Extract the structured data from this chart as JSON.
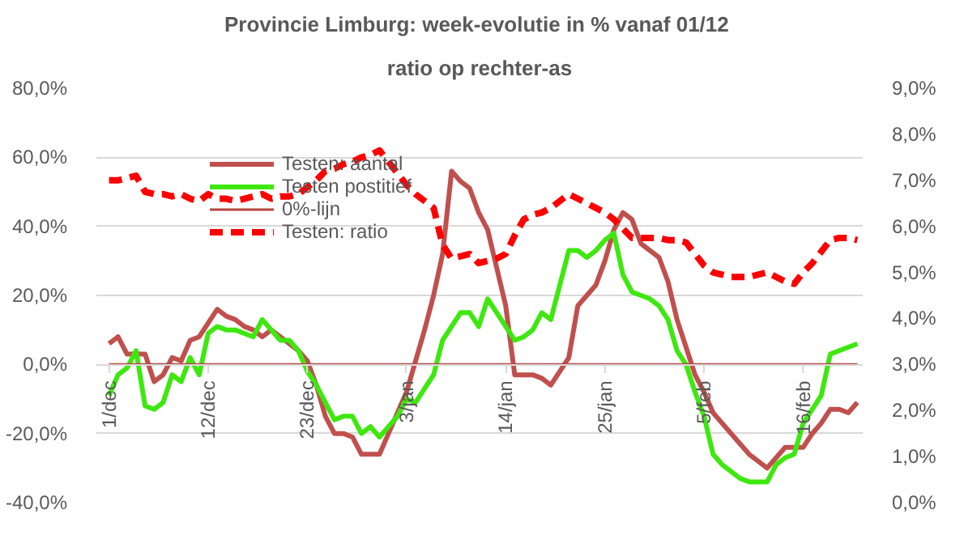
{
  "chart_data": {
    "type": "line",
    "title": "Provincie Limburg: week-evolutie in %  vanaf 01/12",
    "subtitle": "ratio op rechter-as",
    "categories": [
      "1/dec",
      null,
      null,
      null,
      null,
      null,
      null,
      null,
      null,
      null,
      null,
      "12/dec",
      null,
      null,
      null,
      null,
      null,
      null,
      null,
      null,
      null,
      null,
      "23/dec",
      null,
      null,
      null,
      null,
      null,
      null,
      null,
      null,
      null,
      null,
      "3/jan",
      null,
      null,
      null,
      null,
      null,
      null,
      null,
      null,
      null,
      null,
      "14/jan",
      null,
      null,
      null,
      null,
      null,
      null,
      null,
      null,
      null,
      null,
      "25/jan",
      null,
      null,
      null,
      null,
      null,
      null,
      null,
      null,
      null,
      null,
      "5/feb",
      null,
      null,
      null,
      null,
      null,
      null,
      null,
      null,
      null,
      null,
      "16/feb",
      null,
      null,
      null,
      null,
      null,
      null
    ],
    "ylim": [
      -40,
      80
    ],
    "yticks": [
      {
        "value": -40,
        "label": "-40,0%"
      },
      {
        "value": -20,
        "label": "-20,0%"
      },
      {
        "value": 0,
        "label": "0,0%"
      },
      {
        "value": 20,
        "label": "20,0%"
      },
      {
        "value": 40,
        "label": "40,0%"
      },
      {
        "value": 60,
        "label": "60,0%"
      },
      {
        "value": 80,
        "label": "80,0%"
      }
    ],
    "y2lim": [
      0,
      9
    ],
    "y2ticks": [
      {
        "value": 0,
        "label": "0,0%"
      },
      {
        "value": 1,
        "label": "1,0%"
      },
      {
        "value": 2,
        "label": "2,0%"
      },
      {
        "value": 3,
        "label": "3,0%"
      },
      {
        "value": 4,
        "label": "4,0%"
      },
      {
        "value": 5,
        "label": "5,0%"
      },
      {
        "value": 6,
        "label": "6,0%"
      },
      {
        "value": 7,
        "label": "7,0%"
      },
      {
        "value": 8,
        "label": "8,0%"
      },
      {
        "value": 9,
        "label": "9,0%"
      }
    ],
    "grid": "y",
    "legend": "top",
    "marker": "none",
    "series": [
      {
        "name": "Testen: aantal",
        "color": "#c0504d",
        "line_style": "solid",
        "values": [
          6,
          8,
          3,
          3,
          3,
          -5,
          -3,
          2,
          1,
          7,
          8,
          12,
          16,
          14,
          13,
          11,
          10,
          8,
          10,
          8,
          6,
          4,
          1,
          -6,
          -15,
          -20,
          -20,
          -21,
          -26,
          -26,
          -26,
          -20,
          -14,
          -8,
          1,
          10,
          20,
          32,
          56,
          53,
          51,
          44,
          39,
          28,
          17,
          -3,
          -3,
          -3,
          -4,
          -6,
          -2,
          2,
          17,
          20,
          23,
          30,
          39,
          44,
          42,
          35,
          33,
          31,
          24,
          13,
          5,
          -3,
          -8,
          -14,
          -17,
          -20,
          -23,
          -26,
          -28,
          -30,
          -27,
          -24,
          -24,
          -24,
          -20,
          -17,
          -13,
          -13,
          -14,
          -11
        ]
      },
      {
        "name": "Testen postitief",
        "color": "#3ee80f",
        "line_style": "solid",
        "values": [
          -9,
          -3,
          -1,
          4,
          -12,
          -13,
          -11,
          -3,
          -5,
          2,
          -3,
          9,
          11,
          10,
          10,
          9,
          8,
          13,
          10,
          7,
          7,
          4,
          -2,
          -6,
          -11,
          -16,
          -15,
          -15,
          -20,
          -18,
          -21,
          -18,
          -15,
          -10,
          -11,
          -7,
          -3,
          7,
          11,
          15,
          15,
          11,
          19,
          15,
          11,
          7,
          8,
          10,
          15,
          13,
          23,
          33,
          33,
          31,
          33,
          36,
          38,
          26,
          21,
          20,
          19,
          17,
          13,
          4,
          0,
          -8,
          -15,
          -26,
          -29,
          -31,
          -33,
          -34,
          -34,
          -34,
          -29,
          -27,
          -26,
          -17,
          -13,
          -9,
          3,
          4,
          5,
          6
        ]
      },
      {
        "name": "0%-lijn",
        "color": "#b5443f",
        "line_style": "solid",
        "values": [
          0,
          0,
          0,
          0,
          0,
          0,
          0,
          0,
          0,
          0,
          0,
          0,
          0,
          0,
          0,
          0,
          0,
          0,
          0,
          0,
          0,
          0,
          0,
          0,
          0,
          0,
          0,
          0,
          0,
          0,
          0,
          0,
          0,
          0,
          0,
          0,
          0,
          0,
          0,
          0,
          0,
          0,
          0,
          0,
          0,
          0,
          0,
          0,
          0,
          0,
          0,
          0,
          0,
          0,
          0,
          0,
          0,
          0,
          0,
          0,
          0,
          0,
          0,
          0,
          0,
          0,
          0,
          0,
          0,
          0,
          0,
          0,
          0,
          0,
          0,
          0,
          0,
          0,
          0,
          0,
          0,
          0,
          0,
          0
        ]
      },
      {
        "name": "Testen: ratio",
        "color": "#ff0000",
        "line_style": "dashed",
        "axis": "y2",
        "values": [
          7.0,
          7.0,
          7.05,
          7.1,
          6.75,
          6.7,
          6.7,
          6.65,
          6.7,
          6.6,
          6.55,
          6.7,
          6.6,
          6.6,
          6.55,
          6.6,
          6.65,
          6.7,
          6.6,
          6.65,
          6.65,
          6.7,
          6.85,
          7.0,
          7.2,
          7.25,
          7.35,
          7.4,
          7.5,
          7.55,
          7.65,
          7.4,
          7.15,
          6.9,
          6.7,
          6.55,
          6.4,
          5.6,
          5.3,
          5.35,
          5.4,
          5.2,
          5.25,
          5.3,
          5.4,
          5.8,
          6.15,
          6.25,
          6.3,
          6.4,
          6.55,
          6.7,
          6.6,
          6.5,
          6.4,
          6.3,
          6.15,
          5.95,
          5.75,
          5.75,
          5.75,
          5.75,
          5.7,
          5.7,
          5.65,
          5.4,
          5.15,
          5.0,
          4.95,
          4.9,
          4.9,
          4.9,
          4.95,
          5.0,
          4.9,
          4.8,
          4.75,
          5.0,
          5.2,
          5.45,
          5.7,
          5.75,
          5.75,
          5.7
        ]
      }
    ]
  }
}
